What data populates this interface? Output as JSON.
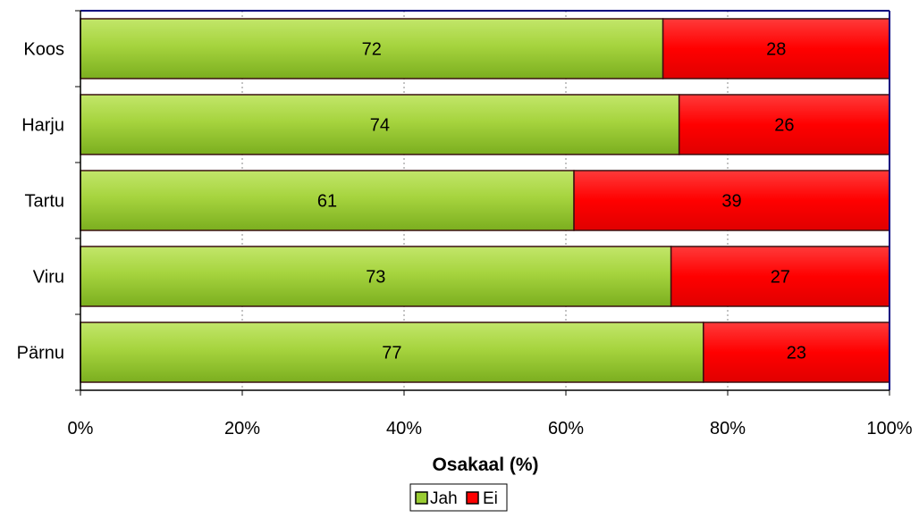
{
  "chart_data": {
    "type": "bar",
    "orientation": "horizontal",
    "stacked": "percent",
    "categories": [
      "Koos",
      "Harju",
      "Tartu",
      "Viru",
      "Pärnu"
    ],
    "series": [
      {
        "name": "Jah",
        "values": [
          72,
          74,
          61,
          73,
          77
        ],
        "color": "#99cc33"
      },
      {
        "name": "Ei",
        "values": [
          28,
          26,
          39,
          27,
          23
        ],
        "color": "#ff0000"
      }
    ],
    "xlabel": "Osakaal (%)",
    "xlim": [
      0,
      100
    ],
    "xticks": [
      "0%",
      "20%",
      "40%",
      "60%",
      "80%",
      "100%"
    ],
    "grid": "vertical dotted",
    "legend": "bottom-center",
    "plot_border_color": "#000080"
  }
}
